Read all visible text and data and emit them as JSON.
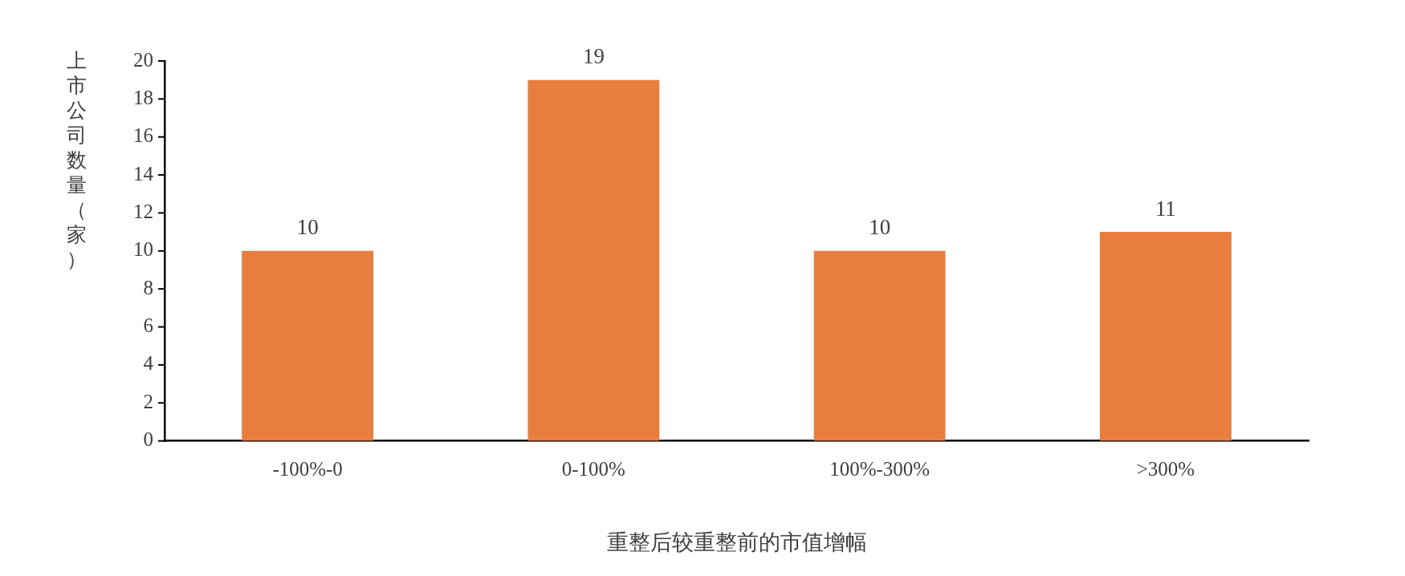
{
  "chart_data": {
    "type": "bar",
    "xlabel": "重整后较重整前的市值增幅",
    "ylabel": "上市公司数量（家）",
    "categories": [
      "-100%-0",
      "0-100%",
      "100%-300%",
      ">300%"
    ],
    "values": [
      10,
      19,
      10,
      11
    ],
    "color": "#e87d3e",
    "ylim": [
      0,
      20
    ],
    "yticks": [
      0,
      2,
      4,
      6,
      8,
      10,
      12,
      14,
      16,
      18,
      20
    ],
    "grid": false,
    "legend": false,
    "data_labels": true
  }
}
